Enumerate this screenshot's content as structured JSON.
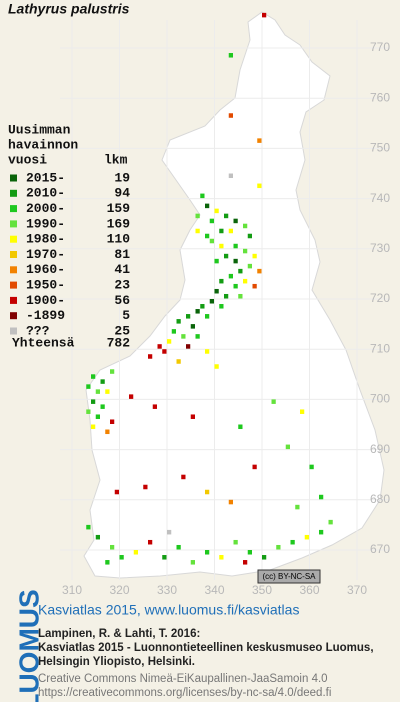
{
  "map": {
    "title": "Lathyrus palustris",
    "xticks": [
      310,
      320,
      330,
      340,
      350,
      360,
      370
    ],
    "yticks": [
      670,
      680,
      690,
      700,
      710,
      720,
      730,
      740,
      750,
      760,
      770
    ],
    "legend": {
      "heading": [
        "Uusimman",
        "havainnon",
        "vuosi"
      ],
      "count_heading": "lkm",
      "items": [
        {
          "label": "2015-",
          "count": 19,
          "color": "#0a640a"
        },
        {
          "label": "2010-",
          "count": 94,
          "color": "#139c13"
        },
        {
          "label": "2000-",
          "count": 159,
          "color": "#1ec81e"
        },
        {
          "label": "1990-",
          "count": 169,
          "color": "#64e23c"
        },
        {
          "label": "1980-",
          "count": 110,
          "color": "#ffff00"
        },
        {
          "label": "1970-",
          "count": 81,
          "color": "#f2c800"
        },
        {
          "label": "1960-",
          "count": 41,
          "color": "#f28200"
        },
        {
          "label": "1950-",
          "count": 23,
          "color": "#e24a00"
        },
        {
          "label": "1900-",
          "count": 56,
          "color": "#c40000"
        },
        {
          "label": "-1899",
          "count": 5,
          "color": "#800000"
        },
        {
          "label": "???",
          "count": 25,
          "color": "#c0c0c0"
        }
      ],
      "total_label": "Yhteensä",
      "total": 782
    },
    "squares": [
      [
        350,
        776,
        8
      ],
      [
        343,
        768,
        2
      ],
      [
        343,
        756,
        7
      ],
      [
        349,
        751,
        6
      ],
      [
        343,
        744,
        10
      ],
      [
        349,
        742,
        4
      ],
      [
        337,
        740,
        2
      ],
      [
        338,
        738,
        0
      ],
      [
        340,
        737,
        4
      ],
      [
        342,
        736,
        1
      ],
      [
        336,
        736,
        3
      ],
      [
        339,
        735,
        2
      ],
      [
        344,
        735,
        0
      ],
      [
        346,
        734,
        3
      ],
      [
        341,
        733,
        1
      ],
      [
        343,
        733,
        4
      ],
      [
        336,
        733,
        4
      ],
      [
        338,
        732,
        2
      ],
      [
        347,
        732,
        1
      ],
      [
        339,
        731,
        3
      ],
      [
        341,
        730,
        4
      ],
      [
        344,
        730,
        2
      ],
      [
        346,
        729,
        3
      ],
      [
        348,
        728,
        4
      ],
      [
        342,
        728,
        1
      ],
      [
        344,
        727,
        0
      ],
      [
        340,
        727,
        2
      ],
      [
        347,
        726,
        3
      ],
      [
        349,
        725,
        6
      ],
      [
        345,
        725,
        1
      ],
      [
        343,
        724,
        2
      ],
      [
        341,
        723,
        1
      ],
      [
        346,
        723,
        4
      ],
      [
        344,
        722,
        2
      ],
      [
        348,
        722,
        7
      ],
      [
        340,
        721,
        0
      ],
      [
        342,
        720,
        1
      ],
      [
        345,
        720,
        3
      ],
      [
        339,
        719,
        0
      ],
      [
        337,
        718,
        1
      ],
      [
        341,
        718,
        2
      ],
      [
        336,
        717,
        0
      ],
      [
        334,
        716,
        1
      ],
      [
        338,
        716,
        2
      ],
      [
        332,
        715,
        1
      ],
      [
        335,
        714,
        0
      ],
      [
        331,
        713,
        2
      ],
      [
        333,
        712,
        3
      ],
      [
        336,
        712,
        2
      ],
      [
        330,
        711,
        4
      ],
      [
        328,
        710,
        8
      ],
      [
        334,
        710,
        9
      ],
      [
        329,
        709,
        8
      ],
      [
        338,
        709,
        4
      ],
      [
        326,
        708,
        8
      ],
      [
        332,
        707,
        5
      ],
      [
        340,
        706,
        4
      ],
      [
        318,
        705,
        3
      ],
      [
        314,
        704,
        2
      ],
      [
        316,
        703,
        1
      ],
      [
        313,
        702,
        2
      ],
      [
        315,
        701,
        3
      ],
      [
        317,
        701,
        4
      ],
      [
        314,
        699,
        1
      ],
      [
        316,
        698,
        2
      ],
      [
        313,
        697,
        3
      ],
      [
        315,
        696,
        2
      ],
      [
        318,
        695,
        8
      ],
      [
        314,
        694,
        4
      ],
      [
        317,
        693,
        6
      ],
      [
        322,
        700,
        8
      ],
      [
        327,
        698,
        8
      ],
      [
        335,
        696,
        8
      ],
      [
        345,
        694,
        2
      ],
      [
        352,
        699,
        3
      ],
      [
        358,
        697,
        4
      ],
      [
        355,
        690,
        3
      ],
      [
        360,
        686,
        2
      ],
      [
        348,
        686,
        8
      ],
      [
        333,
        684,
        8
      ],
      [
        325,
        682,
        8
      ],
      [
        338,
        681,
        5
      ],
      [
        319,
        681,
        8
      ],
      [
        343,
        679,
        6
      ],
      [
        357,
        678,
        3
      ],
      [
        362,
        680,
        2
      ],
      [
        313,
        674,
        2
      ],
      [
        315,
        672,
        1
      ],
      [
        318,
        670,
        3
      ],
      [
        320,
        668,
        2
      ],
      [
        323,
        669,
        4
      ],
      [
        326,
        671,
        8
      ],
      [
        329,
        668,
        1
      ],
      [
        332,
        670,
        2
      ],
      [
        335,
        667,
        3
      ],
      [
        338,
        669,
        2
      ],
      [
        341,
        668,
        4
      ],
      [
        344,
        671,
        3
      ],
      [
        347,
        669,
        2
      ],
      [
        350,
        668,
        1
      ],
      [
        353,
        670,
        3
      ],
      [
        356,
        671,
        2
      ],
      [
        359,
        672,
        4
      ],
      [
        362,
        673,
        2
      ],
      [
        364,
        675,
        3
      ],
      [
        317,
        667,
        2
      ],
      [
        330,
        673,
        10
      ],
      [
        346,
        667,
        8
      ]
    ],
    "license": "(cc) BY-NC-SA",
    "footer": {
      "logo": "LUOMUS",
      "link": "Kasviatlas 2015, www.luomus.fi/kasviatlas",
      "citation": [
        "Lampinen, R. & Lahti, T. 2016:",
        "Kasviatlas 2015 - Luonnontieteellinen keskusmuseo Luomus,",
        "Helsingin Yliopisto, Helsinki."
      ],
      "rights": [
        "Creative Commons Nimeä-EiKaupallinen-JaaSamoin 4.0",
        "https://creativecommons.org/licenses/by-nc-sa/4.0/deed.fi"
      ]
    }
  }
}
